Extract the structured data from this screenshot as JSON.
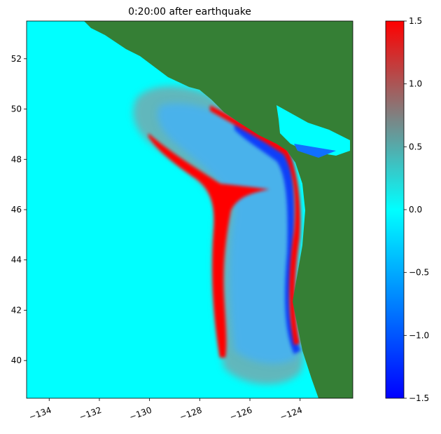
{
  "chart_data": {
    "type": "map",
    "title": "0:20:00 after earthquake",
    "xlim": [
      -134.9,
      -121.9
    ],
    "ylim": [
      38.5,
      53.5
    ],
    "xticks": [
      {
        "value": -134,
        "label": "−134"
      },
      {
        "value": -132,
        "label": "−132"
      },
      {
        "value": -130,
        "label": "−130"
      },
      {
        "value": -128,
        "label": "−128"
      },
      {
        "value": -126,
        "label": "−126"
      },
      {
        "value": -124,
        "label": "−124"
      }
    ],
    "yticks": [
      40,
      42,
      44,
      46,
      48,
      50,
      52
    ],
    "colorbar": {
      "clim": [
        -1.5,
        1.5
      ],
      "ticks": [
        {
          "value": -1.5,
          "label": "−1.5"
        },
        {
          "value": -1,
          "label": "−1.0"
        },
        {
          "value": -0.5,
          "label": "−0.5"
        },
        {
          "value": 0,
          "label": "0.0"
        },
        {
          "value": 0.5,
          "label": "0.5"
        },
        {
          "value": 1,
          "label": "1.0"
        },
        {
          "value": 1.5,
          "label": "1.5"
        }
      ]
    }
  }
}
